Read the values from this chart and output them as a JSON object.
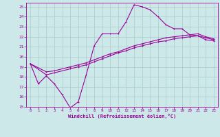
{
  "background_color": "#cce8e8",
  "grid_color": "#aacccc",
  "line_color": "#990099",
  "xlabel": "Windchill (Refroidissement éolien,°C)",
  "xlim": [
    -0.5,
    23.5
  ],
  "ylim": [
    15,
    25.4
  ],
  "yticks": [
    15,
    16,
    17,
    18,
    19,
    20,
    21,
    22,
    23,
    24,
    25
  ],
  "xticks": [
    0,
    1,
    2,
    3,
    4,
    5,
    6,
    7,
    8,
    9,
    10,
    11,
    12,
    13,
    14,
    15,
    16,
    17,
    18,
    19,
    20,
    21,
    22,
    23
  ],
  "series1_x": [
    0,
    1,
    2,
    3,
    4,
    5,
    6,
    7,
    8,
    9,
    10,
    11,
    12,
    13,
    14,
    15,
    16,
    17,
    18,
    19,
    20,
    21,
    22,
    23
  ],
  "series1_y": [
    19.3,
    17.3,
    18.1,
    17.3,
    16.2,
    14.9,
    15.5,
    18.2,
    21.1,
    22.3,
    22.3,
    22.3,
    23.5,
    25.2,
    25.0,
    24.7,
    24.0,
    23.2,
    22.8,
    22.8,
    22.2,
    22.1,
    21.9,
    21.7
  ],
  "series2_x": [
    0,
    2,
    3,
    5,
    6,
    7,
    8,
    9,
    10,
    11,
    12,
    13,
    14,
    15,
    16,
    17,
    18,
    19,
    20,
    21,
    22,
    23
  ],
  "series2_y": [
    19.3,
    18.5,
    18.6,
    19.0,
    19.2,
    19.4,
    19.7,
    20.0,
    20.3,
    20.5,
    20.8,
    21.1,
    21.3,
    21.5,
    21.7,
    21.9,
    22.0,
    22.1,
    22.2,
    22.3,
    22.0,
    21.8
  ],
  "series3_x": [
    0,
    2,
    3,
    5,
    6,
    7,
    8,
    9,
    10,
    11,
    12,
    13,
    14,
    15,
    16,
    17,
    18,
    19,
    20,
    21,
    22,
    23
  ],
  "series3_y": [
    19.3,
    18.2,
    18.4,
    18.8,
    19.0,
    19.2,
    19.5,
    19.8,
    20.1,
    20.4,
    20.6,
    20.9,
    21.1,
    21.3,
    21.5,
    21.6,
    21.8,
    21.9,
    22.0,
    22.1,
    21.7,
    21.6
  ]
}
